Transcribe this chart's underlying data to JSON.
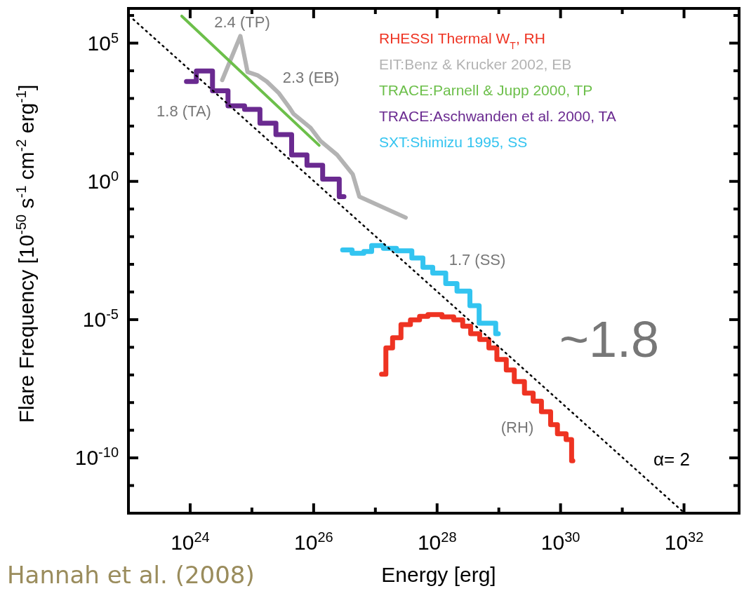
{
  "chart_data": {
    "type": "line",
    "xlabel": "Energy [erg]",
    "ylabel": "Flare Frequency [10$^{-50}$ s$^{-1}$ cm$^{-2}$ erg$^{-1}$]",
    "log": "xy",
    "xlim": [
      1e+23,
      7.8e+32
    ],
    "ylim": [
      1e-12,
      1800000.0
    ],
    "xticks": [
      {
        "value": 1e+24,
        "label": "10$^{24}$"
      },
      {
        "value": 1e+25,
        "label": null
      },
      {
        "value": 1e+26,
        "label": "10$^{26}$"
      },
      {
        "value": 1e+27,
        "label": null
      },
      {
        "value": 1e+28,
        "label": "10$^{28}$"
      },
      {
        "value": 1e+29,
        "label": null
      },
      {
        "value": 1e+30,
        "label": "10$^{30}$"
      },
      {
        "value": 1e+31,
        "label": null
      },
      {
        "value": 1e+32,
        "label": "10$^{32}$"
      }
    ],
    "yticks": [
      {
        "value": 1e-11,
        "label": null
      },
      {
        "value": 1e-10,
        "label": "10$^{-10}$"
      },
      {
        "value": 1e-09,
        "label": null
      },
      {
        "value": 1e-08,
        "label": null
      },
      {
        "value": 1e-07,
        "label": null
      },
      {
        "value": 1e-06,
        "label": null
      },
      {
        "value": 1e-05,
        "label": "10$^{-5}$"
      },
      {
        "value": 0.0001,
        "label": null
      },
      {
        "value": 0.001,
        "label": null
      },
      {
        "value": 0.01,
        "label": null
      },
      {
        "value": 0.1,
        "label": null
      },
      {
        "value": 1,
        "label": "10$^{0}$"
      },
      {
        "value": 10,
        "label": null
      },
      {
        "value": 100,
        "label": null
      },
      {
        "value": 1000,
        "label": null
      },
      {
        "value": 10000,
        "label": null
      },
      {
        "value": 100000,
        "label": "10$^{5}$"
      },
      {
        "value": 1000000,
        "label": null
      }
    ],
    "grid": false,
    "legend": "top right",
    "series": [
      {
        "name": "RHESSI Thermal W$_{T}$, RH",
        "type": "step",
        "color": "#ee3322",
        "x": [
          1.26e+27,
          1.48e+27,
          1.9e+27,
          2.6e+27,
          3.7e+27,
          5.2e+27,
          7.1e+27,
          1.2e+28,
          1.86e+28,
          2.6e+28,
          3.5e+28,
          4.9e+28,
          6.9e+28,
          9.3e+28,
          1.32e+29,
          1.78e+29,
          2.6e+29,
          3.6e+29,
          4.9e+29,
          6.9e+29,
          8.9e+29,
          1.23e+30,
          1.51e+30,
          1.58e+30
        ],
        "values": [
          1.07e-07,
          9.5e-07,
          2.2e-06,
          6.6e-06,
          9.8e-06,
          1.32e-05,
          1.51e-05,
          1.26e-05,
          9.8e-06,
          5.8e-06,
          3.1e-06,
          1.9e-06,
          9.5e-07,
          3.6e-07,
          1.5e-07,
          5.8e-08,
          2.2e-08,
          1.12e-08,
          4.7e-09,
          1.6e-09,
          7.4e-10,
          4.6e-10,
          7.9e-11,
          7.9e-11
        ]
      },
      {
        "name": "EIT:Benz & Krucker 2002, EB",
        "color": "#b3b3b3",
        "x": [
          3.3e+24,
          6.5e+24,
          8.5e+24,
          1.23e+25,
          1.74e+25,
          2.7e+25,
          4.1e+25,
          4.7e+25,
          8.9e+25,
          1.29e+26,
          2.4e+26,
          4.3e+26,
          5.5e+26,
          3.1e+27
        ],
        "values": [
          4600,
          180000,
          9100,
          6900,
          4100,
          1600,
          450,
          280,
          87,
          29,
          9.1,
          1.8,
          0.28,
          0.049
        ]
      },
      {
        "name": "TRACE:Parnell & Jupp 2000, TP",
        "color": "#6cbf4a",
        "x": [
          7.3e+23,
          1.23e+26
        ],
        "values": [
          950000,
          20
        ]
      },
      {
        "name": "TRACE:Aschwanden et al. 2000, TA",
        "type": "step",
        "color": "#6a2a90",
        "x": [
          8.7e+23,
          1.26e+24,
          2.3e+24,
          4.1e+24,
          7.6e+24,
          1.35e+25,
          2.45e+25,
          4.4e+25,
          7.8e+25,
          1.4e+26,
          2.6e+26,
          3.1e+26
        ],
        "values": [
          4100,
          9800,
          1900,
          540,
          400,
          126,
          49,
          9.1,
          3.8,
          1.2,
          0.28,
          0.28
        ]
      },
      {
        "name": "SXT:Shimizu 1995, SS",
        "type": "step",
        "color": "#33c4f0",
        "x": [
          2.95e+26,
          4.2e+26,
          6.5e+26,
          8.7e+26,
          1.35e+27,
          2.2e+27,
          3.9e+27,
          5.9e+27,
          8.5e+27,
          1.38e+28,
          2.1e+28,
          3.4e+28,
          4.8e+28,
          8.9e+28,
          9.8e+28
        ],
        "values": [
          0.0033,
          0.0025,
          0.0029,
          0.0048,
          0.0038,
          0.0031,
          0.0017,
          0.00078,
          0.00048,
          0.0002,
          0.000107,
          3.2e-05,
          7.4e-06,
          3.1e-06,
          3.1e-06
        ]
      },
      {
        "color": "#000000",
        "line_style": "dotted",
        "x": [
          1.2e+23,
          1e+32
        ],
        "values": [
          720000,
          1.05e-12
        ]
      }
    ],
    "annotations": [
      "2.4 (TP)",
      "2.3 (EB)",
      "1.8 (TA)",
      "1.7 (SS)",
      "(RH)",
      "~1.8",
      "α= 2",
      "Hannah et al. (2008)"
    ]
  }
}
